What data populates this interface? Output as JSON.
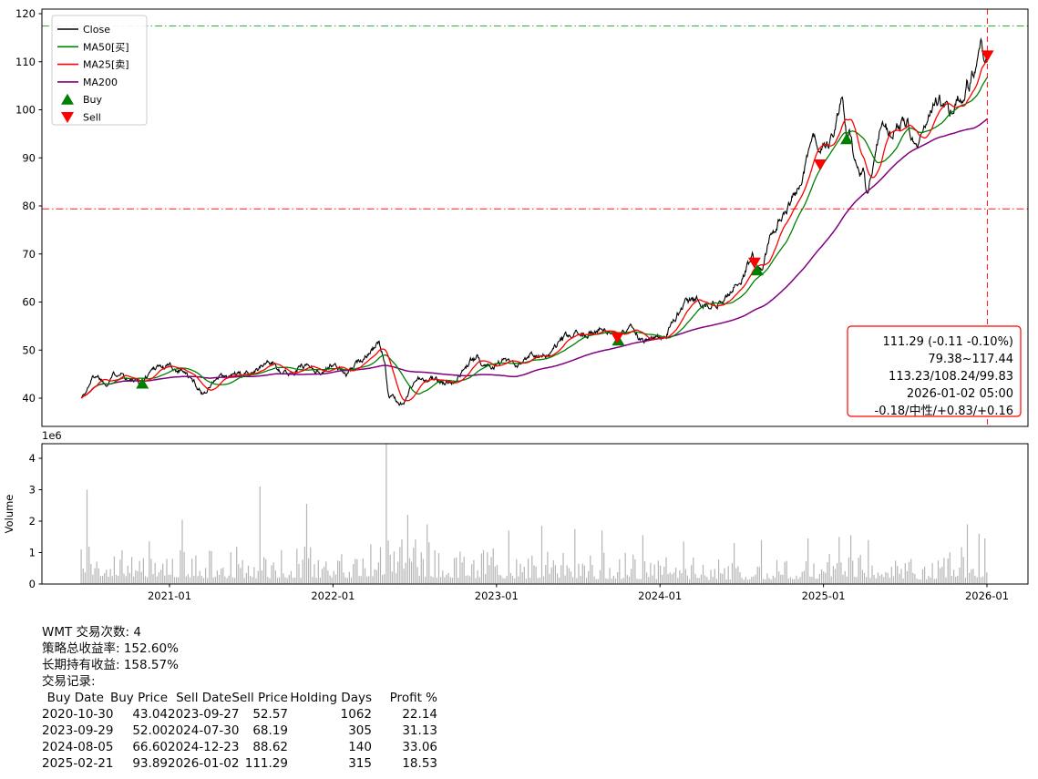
{
  "page": {
    "background": "#ffffff"
  },
  "colors": {
    "close": "#000000",
    "ma50": "#008000",
    "ma25": "#ff0000",
    "ma200": "#800080",
    "buy": "#008000",
    "sell": "#ff0000",
    "volume": "#b5b5b5",
    "hline_high": "#00a000",
    "hline_low": "#ff0000",
    "vline": "#ff0000",
    "annotation_text": "#ff0000",
    "spine": "#000000",
    "legend_border": "#cccccc"
  },
  "legend": {
    "entries": [
      {
        "label": "Close",
        "color": "#000000",
        "type": "line"
      },
      {
        "label": "MA50[买]",
        "color": "#008000",
        "type": "line"
      },
      {
        "label": "MA25[卖]",
        "color": "#ff0000",
        "type": "line"
      },
      {
        "label": "MA200",
        "color": "#800080",
        "type": "line"
      },
      {
        "label": "Buy",
        "color": "#008000",
        "type": "triangle-up"
      },
      {
        "label": "Sell",
        "color": "#ff0000",
        "type": "triangle-down"
      }
    ]
  },
  "chart_data": {
    "type": "line",
    "symbol": "WMT",
    "title": "",
    "price_axis": {
      "ticks": [
        40,
        50,
        60,
        70,
        80,
        90,
        100,
        110,
        120
      ],
      "range": [
        34,
        121
      ]
    },
    "volume_axis": {
      "ticks": [
        0,
        1,
        2,
        3,
        4
      ],
      "range": [
        0,
        4.46
      ],
      "multiplier": "1e6",
      "label": "Volume"
    },
    "x_ticks": [
      {
        "t": 2021,
        "label": "2021-01"
      },
      {
        "t": 2022,
        "label": "2022-01"
      },
      {
        "t": 2023,
        "label": "2023-01"
      },
      {
        "t": 2024,
        "label": "2024-01"
      },
      {
        "t": 2025,
        "label": "2025-01"
      },
      {
        "t": 2026,
        "label": "2026-01"
      }
    ],
    "hlines": [
      {
        "value": 117.44,
        "color": "#00a000",
        "style": "dashdot"
      },
      {
        "value": 79.38,
        "color": "#ff0000",
        "style": "dashdot"
      }
    ],
    "vline": {
      "t": 2026.003,
      "label": "2026-01-02",
      "color": "#ff0000",
      "style": "dashed"
    },
    "series": {
      "close_keypoints": [
        [
          2020.46,
          40.4
        ],
        [
          2020.49,
          41.2
        ],
        [
          2020.52,
          43.8
        ],
        [
          2020.55,
          45.0
        ],
        [
          2020.58,
          44.2
        ],
        [
          2020.61,
          43.0
        ],
        [
          2020.64,
          44.6
        ],
        [
          2020.67,
          45.2
        ],
        [
          2020.7,
          46.0
        ],
        [
          2020.73,
          44.6
        ],
        [
          2020.76,
          43.6
        ],
        [
          2020.8,
          43.2
        ],
        [
          2020.83,
          43.0
        ],
        [
          2020.86,
          44.6
        ],
        [
          2020.9,
          46.3
        ],
        [
          2020.93,
          47.0
        ],
        [
          2020.96,
          46.4
        ],
        [
          2021.0,
          46.8
        ],
        [
          2021.04,
          45.9
        ],
        [
          2021.08,
          46.3
        ],
        [
          2021.12,
          44.2
        ],
        [
          2021.16,
          42.9
        ],
        [
          2021.2,
          41.0
        ],
        [
          2021.24,
          42.2
        ],
        [
          2021.28,
          43.8
        ],
        [
          2021.32,
          44.3
        ],
        [
          2021.36,
          44.0
        ],
        [
          2021.4,
          45.0
        ],
        [
          2021.44,
          44.5
        ],
        [
          2021.48,
          45.4
        ],
        [
          2021.52,
          46.1
        ],
        [
          2021.56,
          46.4
        ],
        [
          2021.6,
          47.6
        ],
        [
          2021.64,
          47.0
        ],
        [
          2021.68,
          45.9
        ],
        [
          2021.72,
          44.9
        ],
        [
          2021.76,
          45.6
        ],
        [
          2021.8,
          46.6
        ],
        [
          2021.84,
          47.1
        ],
        [
          2021.88,
          46.3
        ],
        [
          2021.92,
          45.4
        ],
        [
          2021.96,
          46.2
        ],
        [
          2022.0,
          46.9
        ],
        [
          2022.04,
          46.1
        ],
        [
          2022.08,
          44.6
        ],
        [
          2022.12,
          45.8
        ],
        [
          2022.16,
          47.4
        ],
        [
          2022.2,
          49.3
        ],
        [
          2022.24,
          50.6
        ],
        [
          2022.28,
          51.1
        ],
        [
          2022.32,
          47.0
        ],
        [
          2022.34,
          40.6
        ],
        [
          2022.37,
          40.0
        ],
        [
          2022.4,
          39.2
        ],
        [
          2022.43,
          38.7
        ],
        [
          2022.46,
          41.0
        ],
        [
          2022.5,
          43.6
        ],
        [
          2022.53,
          44.1
        ],
        [
          2022.56,
          43.1
        ],
        [
          2022.6,
          44.2
        ],
        [
          2022.64,
          43.4
        ],
        [
          2022.68,
          42.9
        ],
        [
          2022.72,
          43.6
        ],
        [
          2022.76,
          44.4
        ],
        [
          2022.8,
          46.0
        ],
        [
          2022.84,
          47.6
        ],
        [
          2022.88,
          48.2
        ],
        [
          2022.92,
          47.4
        ],
        [
          2022.96,
          46.9
        ],
        [
          2023.0,
          47.4
        ],
        [
          2023.04,
          47.8
        ],
        [
          2023.08,
          47.1
        ],
        [
          2023.12,
          45.9
        ],
        [
          2023.16,
          47.0
        ],
        [
          2023.2,
          49.4
        ],
        [
          2023.24,
          49.2
        ],
        [
          2023.28,
          49.0
        ],
        [
          2023.32,
          48.9
        ],
        [
          2023.36,
          50.2
        ],
        [
          2023.4,
          52.0
        ],
        [
          2023.44,
          52.4
        ],
        [
          2023.48,
          53.1
        ],
        [
          2023.52,
          53.3
        ],
        [
          2023.56,
          53.8
        ],
        [
          2023.6,
          54.1
        ],
        [
          2023.64,
          54.4
        ],
        [
          2023.68,
          53.6
        ],
        [
          2023.71,
          53.0
        ],
        [
          2023.737,
          52.6
        ],
        [
          2023.75,
          52.1
        ],
        [
          2023.78,
          54.0
        ],
        [
          2023.82,
          55.3
        ],
        [
          2023.86,
          53.0
        ],
        [
          2023.89,
          51.8
        ],
        [
          2023.93,
          51.6
        ],
        [
          2023.97,
          52.4
        ],
        [
          2024.0,
          52.7
        ],
        [
          2024.04,
          53.6
        ],
        [
          2024.08,
          55.8
        ],
        [
          2024.12,
          58.6
        ],
        [
          2024.16,
          60.2
        ],
        [
          2024.2,
          59.9
        ],
        [
          2024.24,
          60.3
        ],
        [
          2024.28,
          59.6
        ],
        [
          2024.32,
          60.2
        ],
        [
          2024.36,
          60.8
        ],
        [
          2024.4,
          61.4
        ],
        [
          2024.44,
          62.4
        ],
        [
          2024.48,
          64.0
        ],
        [
          2024.52,
          66.3
        ],
        [
          2024.55,
          68.5
        ],
        [
          2024.57,
          69.8
        ],
        [
          2024.577,
          68.2
        ],
        [
          2024.59,
          66.6
        ],
        [
          2024.62,
          67.5
        ],
        [
          2024.66,
          71.5
        ],
        [
          2024.7,
          75.0
        ],
        [
          2024.74,
          77.5
        ],
        [
          2024.78,
          80.3
        ],
        [
          2024.82,
          82.0
        ],
        [
          2024.85,
          84.0
        ],
        [
          2024.88,
          88.0
        ],
        [
          2024.91,
          92.0
        ],
        [
          2024.935,
          95.8
        ],
        [
          2024.95,
          94.0
        ],
        [
          2024.965,
          90.5
        ],
        [
          2024.978,
          89.0
        ],
        [
          2025.0,
          90.5
        ],
        [
          2025.03,
          92.5
        ],
        [
          2025.06,
          96.0
        ],
        [
          2025.09,
          99.5
        ],
        [
          2025.115,
          103.5
        ],
        [
          2025.13,
          99.0
        ],
        [
          2025.142,
          93.9
        ],
        [
          2025.16,
          95.5
        ],
        [
          2025.19,
          88.5
        ],
        [
          2025.22,
          85.0
        ],
        [
          2025.25,
          87.5
        ],
        [
          2025.265,
          81.8
        ],
        [
          2025.29,
          84.5
        ],
        [
          2025.32,
          92.0
        ],
        [
          2025.35,
          96.5
        ],
        [
          2025.38,
          96.0
        ],
        [
          2025.41,
          94.8
        ],
        [
          2025.44,
          96.0
        ],
        [
          2025.47,
          97.5
        ],
        [
          2025.5,
          98.0
        ],
        [
          2025.53,
          96.5
        ],
        [
          2025.56,
          95.0
        ],
        [
          2025.59,
          94.2
        ],
        [
          2025.62,
          96.5
        ],
        [
          2025.65,
          99.0
        ],
        [
          2025.68,
          100.5
        ],
        [
          2025.71,
          102.0
        ],
        [
          2025.74,
          101.0
        ],
        [
          2025.77,
          99.8
        ],
        [
          2025.8,
          100.5
        ],
        [
          2025.83,
          102.0
        ],
        [
          2025.86,
          104.0
        ],
        [
          2025.875,
          107.5
        ],
        [
          2025.89,
          105.0
        ],
        [
          2025.91,
          107.0
        ],
        [
          2025.93,
          110.0
        ],
        [
          2025.95,
          114.5
        ],
        [
          2025.962,
          116.9
        ],
        [
          2025.975,
          113.0
        ],
        [
          2025.99,
          112.0
        ],
        [
          2026.003,
          111.3
        ]
      ],
      "ma_windows": {
        "ma25": 25,
        "ma50": 50,
        "ma200": 200
      }
    },
    "volume": {
      "envelope": [
        [
          2020.46,
          0.85
        ],
        [
          2020.7,
          0.75
        ],
        [
          2021.0,
          0.8
        ],
        [
          2021.3,
          0.65
        ],
        [
          2021.6,
          0.65
        ],
        [
          2021.9,
          0.7
        ],
        [
          2022.1,
          0.7
        ],
        [
          2022.35,
          1.0
        ],
        [
          2022.6,
          0.75
        ],
        [
          2022.9,
          0.65
        ],
        [
          2023.2,
          0.6
        ],
        [
          2023.5,
          0.55
        ],
        [
          2023.8,
          0.55
        ],
        [
          2024.1,
          0.5
        ],
        [
          2024.4,
          0.45
        ],
        [
          2024.7,
          0.5
        ],
        [
          2024.95,
          0.6
        ],
        [
          2025.15,
          0.8
        ],
        [
          2025.35,
          0.6
        ],
        [
          2025.6,
          0.5
        ],
        [
          2025.85,
          0.65
        ],
        [
          2026.0,
          0.8
        ]
      ],
      "spikes": [
        [
          2020.5,
          3.0
        ],
        [
          2021.08,
          2.05
        ],
        [
          2021.55,
          3.1
        ],
        [
          2021.84,
          2.55
        ],
        [
          2022.33,
          4.45
        ],
        [
          2022.455,
          2.2
        ],
        [
          2022.57,
          1.9
        ],
        [
          2023.08,
          1.7
        ],
        [
          2023.28,
          1.85
        ],
        [
          2023.48,
          1.75
        ],
        [
          2023.65,
          1.7
        ],
        [
          2023.9,
          1.55
        ],
        [
          2024.15,
          1.35
        ],
        [
          2024.45,
          1.3
        ],
        [
          2024.62,
          1.4
        ],
        [
          2024.9,
          1.45
        ],
        [
          2025.1,
          1.5
        ],
        [
          2025.17,
          1.55
        ],
        [
          2025.27,
          1.4
        ],
        [
          2025.88,
          1.9
        ],
        [
          2025.95,
          1.6
        ],
        [
          2025.99,
          1.45
        ]
      ]
    },
    "trades_markers": {
      "buys": [
        [
          2020.834,
          43.04
        ],
        [
          2023.745,
          52.0
        ],
        [
          2024.595,
          66.6
        ],
        [
          2025.142,
          93.89
        ]
      ],
      "sells": [
        [
          2023.739,
          52.57
        ],
        [
          2024.578,
          68.19
        ],
        [
          2024.979,
          88.62
        ],
        [
          2026.003,
          111.29
        ]
      ]
    },
    "annotation": {
      "lines": [
        "111.29 (-0.11 -0.10%)",
        "79.38~117.44",
        "113.23/108.24/99.83",
        "2026-01-02 05:00",
        "-0.18/中性/+0.83/+0.16"
      ]
    }
  },
  "report": {
    "lines": [
      "WMT 交易次数: 4",
      "策略总收益率: 152.60%",
      "长期持有收益: 158.57%",
      "交易记录:"
    ]
  },
  "trades_table": {
    "headers": [
      "Buy Date",
      "Buy Price",
      "Sell Date",
      "Sell Price",
      "Holding Days",
      "Profit %"
    ],
    "rows": [
      [
        "2020-10-30",
        "43.04",
        "2023-09-27",
        "52.57",
        "1062",
        "22.14"
      ],
      [
        "2023-09-29",
        "52.00",
        "2024-07-30",
        "68.19",
        "305",
        "31.13"
      ],
      [
        "2024-08-05",
        "66.60",
        "2024-12-23",
        "88.62",
        "140",
        "33.06"
      ],
      [
        "2025-02-21",
        "93.89",
        "2026-01-02",
        "111.29",
        "315",
        "18.53"
      ]
    ]
  }
}
